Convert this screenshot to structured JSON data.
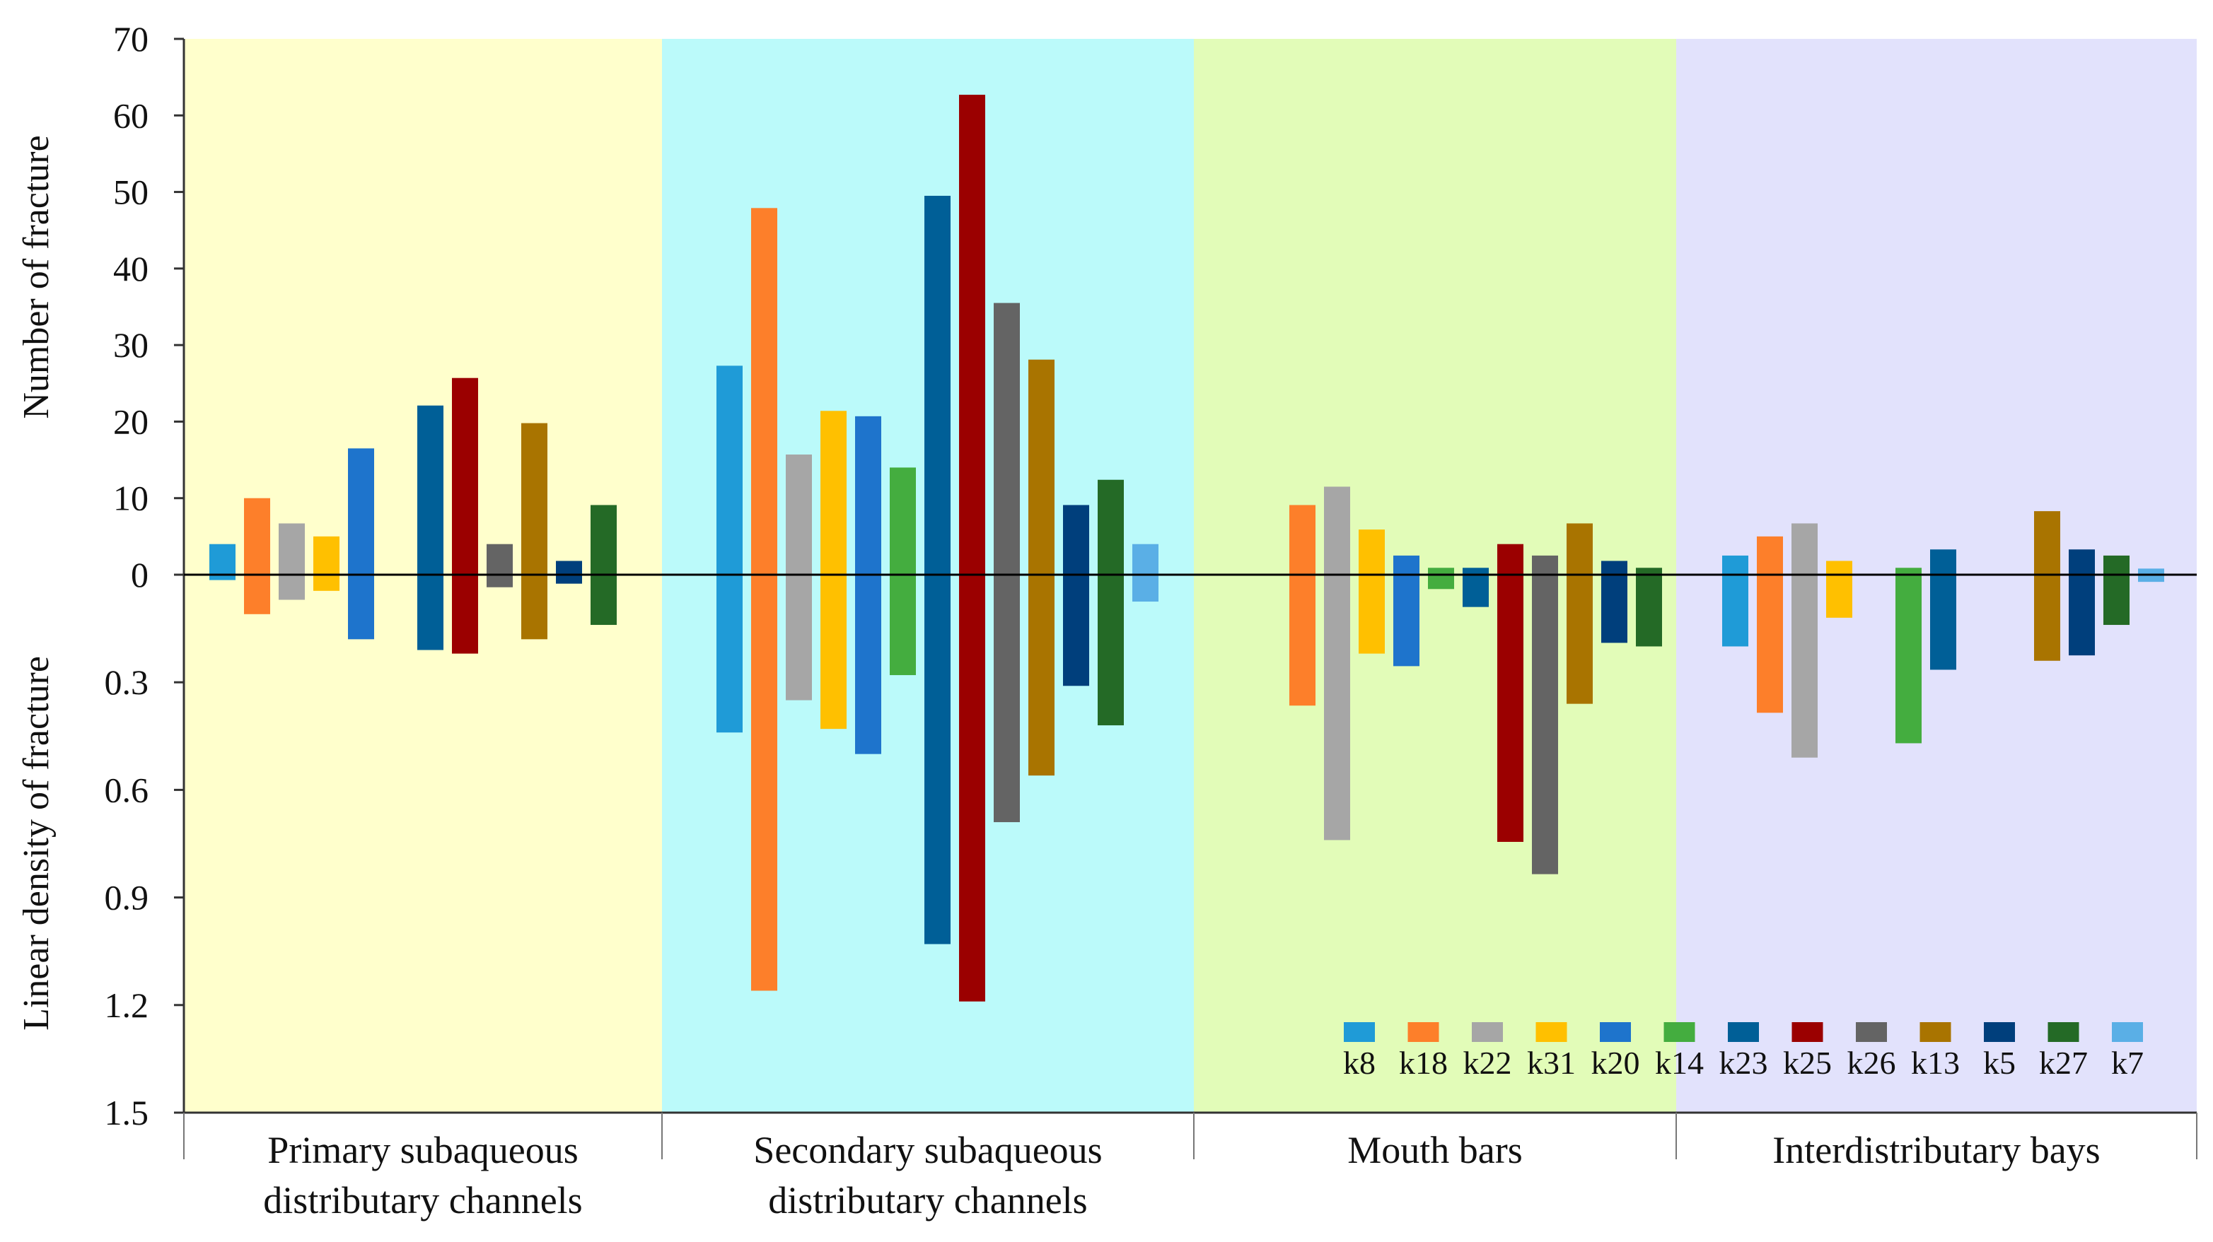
{
  "chart_data": {
    "type": "bar",
    "title": "",
    "ylabel_top": "Number of  fracture",
    "ylabel_bottom": "Linear density of  fracture",
    "top_axis": {
      "min": 0,
      "max": 70,
      "ticks": [
        "0",
        "10",
        "20",
        "30",
        "40",
        "50",
        "60",
        "70"
      ]
    },
    "bottom_axis": {
      "min": 0,
      "max": 1.5,
      "ticks": [
        "0.3",
        "0.6",
        "0.9",
        "1.2",
        "1.5"
      ]
    },
    "facies": [
      {
        "line1": "Primary subaqueous",
        "line2": "distributary channels",
        "color": "#ffffcc"
      },
      {
        "line1": "Secondary subaqueous",
        "line2": "distributary channels",
        "color": "#bbfafa"
      },
      {
        "line1": "Mouth bars",
        "line2": "",
        "color": "#e2fcb8"
      },
      {
        "line1": "Interdistributary bays",
        "line2": "",
        "color": "#e2e2fc"
      }
    ],
    "series": [
      {
        "name": "k8",
        "color": "#1f9bd7"
      },
      {
        "name": "k18",
        "color": "#fd7f2a"
      },
      {
        "name": "k22",
        "color": "#a6a6a6"
      },
      {
        "name": "k31",
        "color": "#ffc000"
      },
      {
        "name": "k20",
        "color": "#1e74cc"
      },
      {
        "name": "k14",
        "color": "#44ad3f"
      },
      {
        "name": "k23",
        "color": "#005f97"
      },
      {
        "name": "k25",
        "color": "#9b0000"
      },
      {
        "name": "k26",
        "color": "#646464"
      },
      {
        "name": "k13",
        "color": "#a97400"
      },
      {
        "name": "k5",
        "color": "#003f7c"
      },
      {
        "name": "k27",
        "color": "#246a26"
      },
      {
        "name": "k7",
        "color": "#5aafe6"
      }
    ],
    "bars": [
      {
        "group": 0,
        "slot": 0,
        "series": "k8",
        "count": 4,
        "density": 0.015
      },
      {
        "group": 0,
        "slot": 1,
        "series": "k18",
        "count": 10,
        "density": 0.11
      },
      {
        "group": 0,
        "slot": 2,
        "series": "k22",
        "count": 6.7,
        "density": 0.07
      },
      {
        "group": 0,
        "slot": 3,
        "series": "k31",
        "count": 5,
        "density": 0.045
      },
      {
        "group": 0,
        "slot": 4,
        "series": "k20",
        "count": 16.5,
        "density": 0.18
      },
      {
        "group": 0,
        "slot": 6,
        "series": "k23",
        "count": 22.1,
        "density": 0.21
      },
      {
        "group": 0,
        "slot": 7,
        "series": "k25",
        "count": 25.7,
        "density": 0.22
      },
      {
        "group": 0,
        "slot": 8,
        "series": "k26",
        "count": 4,
        "density": 0.035
      },
      {
        "group": 0,
        "slot": 9,
        "series": "k13",
        "count": 19.8,
        "density": 0.18
      },
      {
        "group": 0,
        "slot": 10,
        "series": "k5",
        "count": 1.8,
        "density": 0.025
      },
      {
        "group": 0,
        "slot": 11,
        "series": "k27",
        "count": 9.1,
        "density": 0.14
      },
      {
        "group": 1,
        "slot": 0,
        "series": "k8",
        "count": 27.3,
        "density": 0.44
      },
      {
        "group": 1,
        "slot": 1,
        "series": "k18",
        "count": 47.9,
        "density": 1.16
      },
      {
        "group": 1,
        "slot": 2,
        "series": "k22",
        "count": 15.7,
        "density": 0.35
      },
      {
        "group": 1,
        "slot": 3,
        "series": "k31",
        "count": 21.4,
        "density": 0.43
      },
      {
        "group": 1,
        "slot": 4,
        "series": "k20",
        "count": 20.7,
        "density": 0.5
      },
      {
        "group": 1,
        "slot": 5,
        "series": "k14",
        "count": 14,
        "density": 0.28
      },
      {
        "group": 1,
        "slot": 6,
        "series": "k23",
        "count": 49.5,
        "density": 1.03
      },
      {
        "group": 1,
        "slot": 7,
        "series": "k25",
        "count": 62.7,
        "density": 1.19
      },
      {
        "group": 1,
        "slot": 8,
        "series": "k26",
        "count": 35.5,
        "density": 0.69
      },
      {
        "group": 1,
        "slot": 9,
        "series": "k13",
        "count": 28.1,
        "density": 0.56
      },
      {
        "group": 1,
        "slot": 10,
        "series": "k5",
        "count": 9.1,
        "density": 0.31
      },
      {
        "group": 1,
        "slot": 11,
        "series": "k27",
        "count": 12.4,
        "density": 0.42
      },
      {
        "group": 1,
        "slot": 12,
        "series": "k7",
        "count": 4,
        "density": 0.075
      },
      {
        "group": 2,
        "slot": 1,
        "series": "k18",
        "count": 9.1,
        "density": 0.365
      },
      {
        "group": 2,
        "slot": 2,
        "series": "k22",
        "count": 11.5,
        "density": 0.74
      },
      {
        "group": 2,
        "slot": 3,
        "series": "k31",
        "count": 5.9,
        "density": 0.22
      },
      {
        "group": 2,
        "slot": 4,
        "series": "k20",
        "count": 2.5,
        "density": 0.255
      },
      {
        "group": 2,
        "slot": 5,
        "series": "k14",
        "count": 0.9,
        "density": 0.04
      },
      {
        "group": 2,
        "slot": 6,
        "series": "k23",
        "count": 0.9,
        "density": 0.09
      },
      {
        "group": 2,
        "slot": 7,
        "series": "k25",
        "count": 4,
        "density": 0.745
      },
      {
        "group": 2,
        "slot": 8,
        "series": "k26",
        "count": 2.5,
        "density": 0.835
      },
      {
        "group": 2,
        "slot": 9,
        "series": "k13",
        "count": 6.7,
        "density": 0.36
      },
      {
        "group": 2,
        "slot": 10,
        "series": "k5",
        "count": 1.8,
        "density": 0.19
      },
      {
        "group": 2,
        "slot": 11,
        "series": "k27",
        "count": 0.9,
        "density": 0.2
      },
      {
        "group": 3,
        "slot": 0,
        "series": "k8",
        "count": 2.5,
        "density": 0.2
      },
      {
        "group": 3,
        "slot": 1,
        "series": "k18",
        "count": 5,
        "density": 0.385
      },
      {
        "group": 3,
        "slot": 2,
        "series": "k22",
        "count": 6.7,
        "density": 0.51
      },
      {
        "group": 3,
        "slot": 3,
        "series": "k31",
        "count": 1.8,
        "density": 0.12
      },
      {
        "group": 3,
        "slot": 5,
        "series": "k14",
        "count": 0.9,
        "density": 0.47
      },
      {
        "group": 3,
        "slot": 6,
        "series": "k23",
        "count": 3.3,
        "density": 0.265
      },
      {
        "group": 3,
        "slot": 9,
        "series": "k13",
        "count": 8.3,
        "density": 0.24
      },
      {
        "group": 3,
        "slot": 10,
        "series": "k5",
        "count": 3.3,
        "density": 0.225
      },
      {
        "group": 3,
        "slot": 11,
        "series": "k27",
        "count": 2.5,
        "density": 0.14
      },
      {
        "group": 3,
        "slot": 12,
        "series": "k7",
        "count": 0.8,
        "density": 0.02
      }
    ],
    "legend_position": "bottom-right",
    "grid": false
  }
}
